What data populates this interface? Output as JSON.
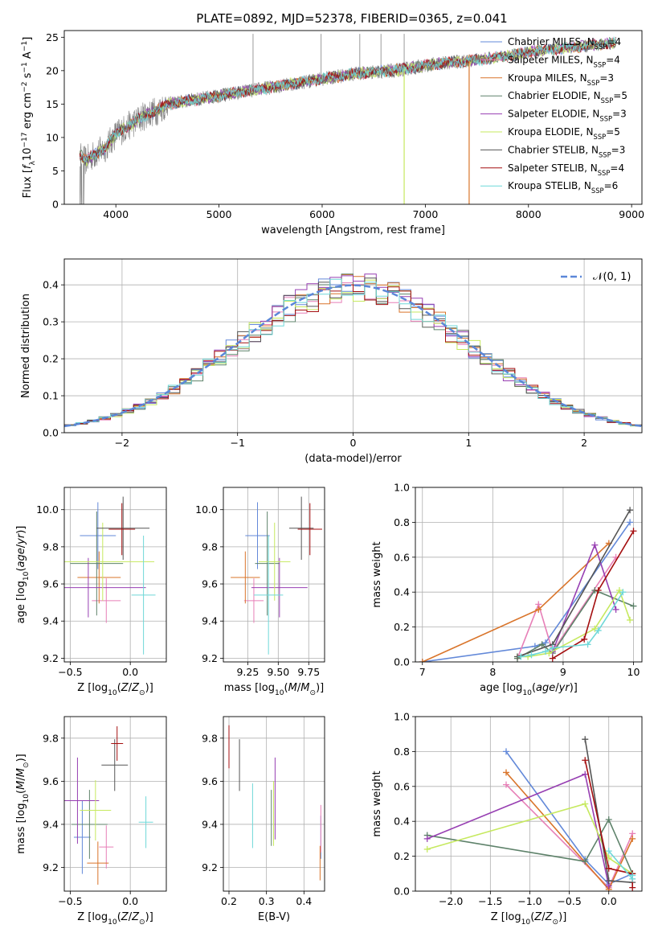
{
  "figure": {
    "title": "PLATE=0892, MJD=52378, FIBERID=0365, z=0.041"
  },
  "series_names": [
    "Chabrier MILES, N_SSP=4",
    "Salpeter MILES, N_SSP=4",
    "Kroupa MILES, N_SSP=3",
    "Chabrier ELODIE, N_SSP=5",
    "Salpeter ELODIE, N_SSP=3",
    "Kroupa ELODIE, N_SSP=5",
    "Chabrier STELIB, N_SSP=3",
    "Salpeter STELIB, N_SSP=4",
    "Kroupa STELIB, N_SSP=6"
  ],
  "series_colors": [
    "#6389d9",
    "#e77fb7",
    "#d9742a",
    "#5e826a",
    "#973fb2",
    "#c6e95f",
    "#555555",
    "#a40f10",
    "#6fd8d8"
  ],
  "chart_data": [
    {
      "id": "spectrum",
      "type": "line",
      "title": "PLATE=0892, MJD=52378, FIBERID=0365, z=0.041",
      "xlabel": "wavelength [Angstrom, rest frame]",
      "ylabel": "Flux [f_λ 10^-17 erg cm^-2 s^-1 A^-1]",
      "xlim": [
        3500,
        9100
      ],
      "ylim": [
        0,
        26
      ],
      "xticks": [
        4000,
        5000,
        6000,
        7000,
        8000,
        9000
      ],
      "yticks": [
        0,
        5,
        10,
        15,
        20,
        25
      ],
      "grid": false,
      "legend": "top-right",
      "observed_color": "#808080",
      "model_wavelength": [
        3650,
        3700,
        3800,
        3900,
        4000,
        4100,
        4200,
        4300,
        4400,
        4500,
        4700,
        4900,
        5100,
        5300,
        5500,
        5700,
        5900,
        6100,
        6300,
        6500,
        6700,
        6900,
        7100,
        7300,
        7500,
        7700,
        7900,
        8100,
        8300,
        8500,
        8700,
        8850
      ],
      "model_flux": [
        7.5,
        6.5,
        7.5,
        8.5,
        10.5,
        11.5,
        12.5,
        13.5,
        14.0,
        15.0,
        15.5,
        16.0,
        16.5,
        17.0,
        17.5,
        18.0,
        18.5,
        19.0,
        19.5,
        19.8,
        20.0,
        20.5,
        21.0,
        21.3,
        21.6,
        22.0,
        22.5,
        23.0,
        23.3,
        23.6,
        24.0,
        24.2
      ],
      "observed_wavelength_range": [
        3650,
        7450
      ],
      "spike_wavelengths": [
        5330,
        5990,
        6365,
        6570,
        6795
      ],
      "dropout_wavelengths": [
        6795,
        7425
      ]
    },
    {
      "id": "residuals",
      "type": "histogram",
      "xlabel": "(data-model)/error",
      "ylabel": "Normed distribution",
      "xlim": [
        -2.5,
        2.5
      ],
      "ylim": [
        0,
        0.47
      ],
      "xticks": [
        -2,
        -1,
        0,
        1,
        2
      ],
      "yticks": [
        0.0,
        0.1,
        0.2,
        0.3,
        0.4
      ],
      "grid": true,
      "legend": "top-right",
      "normal_curve": {
        "name": "N(0,1)",
        "mean": 0,
        "sigma": 1,
        "color": "#5b87d8"
      },
      "bin_width": 0.1
    },
    {
      "id": "age-vs-z",
      "type": "errorbar",
      "xlabel": "Z [log10(Z/Z⊙)]",
      "ylabel": "age  [log10(age/yr)]",
      "xlim": [
        -0.55,
        0.3
      ],
      "ylim": [
        9.18,
        10.12
      ],
      "xticks": [
        -0.5,
        0.0
      ],
      "yticks": [
        9.2,
        9.4,
        9.6,
        9.8,
        10.0
      ],
      "grid": true,
      "points": [
        {
          "x": -0.27,
          "xerr": 0.15,
          "y": 9.86,
          "yerr": 0.18
        },
        {
          "x": -0.2,
          "xerr": 0.12,
          "y": 9.51,
          "yerr": 0.12
        },
        {
          "x": -0.26,
          "xerr": 0.18,
          "y": 9.635,
          "yerr": 0.14
        },
        {
          "x": -0.28,
          "xerr": 0.22,
          "y": 9.71,
          "yerr": 0.28
        },
        {
          "x": -0.35,
          "xerr": 0.48,
          "y": 9.58,
          "yerr": 0.16
        },
        {
          "x": -0.23,
          "xerr": 0.43,
          "y": 9.72,
          "yerr": 0.21
        },
        {
          "x": -0.06,
          "xerr": 0.22,
          "y": 9.9,
          "yerr": 0.17
        },
        {
          "x": -0.07,
          "xerr": 0.11,
          "y": 9.895,
          "yerr": 0.14
        },
        {
          "x": 0.11,
          "xerr": 0.1,
          "y": 9.54,
          "yerr": 0.32
        }
      ]
    },
    {
      "id": "age-vs-mass",
      "type": "errorbar",
      "xlabel": "mass [log10(M/M⊙)]",
      "ylabel": "",
      "xlim": [
        9.05,
        9.88
      ],
      "ylim": [
        9.18,
        10.12
      ],
      "xticks": [
        9.25,
        9.5,
        9.75
      ],
      "yticks": [
        9.2,
        9.4,
        9.6,
        9.8,
        10.0
      ],
      "grid": true,
      "points": [
        {
          "x": 9.33,
          "xerr": 0.1,
          "y": 9.86,
          "yerr": 0.18
        },
        {
          "x": 9.3,
          "xerr": 0.08,
          "y": 9.51,
          "yerr": 0.12
        },
        {
          "x": 9.23,
          "xerr": 0.12,
          "y": 9.635,
          "yerr": 0.14
        },
        {
          "x": 9.41,
          "xerr": 0.1,
          "y": 9.71,
          "yerr": 0.28
        },
        {
          "x": 9.51,
          "xerr": 0.23,
          "y": 9.58,
          "yerr": 0.16
        },
        {
          "x": 9.47,
          "xerr": 0.13,
          "y": 9.72,
          "yerr": 0.21
        },
        {
          "x": 9.69,
          "xerr": 0.1,
          "y": 9.9,
          "yerr": 0.17
        },
        {
          "x": 9.76,
          "xerr": 0.1,
          "y": 9.895,
          "yerr": 0.14
        },
        {
          "x": 9.42,
          "xerr": 0.12,
          "y": 9.54,
          "yerr": 0.32
        }
      ]
    },
    {
      "id": "massweight-vs-age",
      "type": "line",
      "xlabel": "age  [log10(age/yr)]",
      "ylabel": "mass weight",
      "xlim": [
        6.9,
        10.12
      ],
      "ylim": [
        0,
        1
      ],
      "xticks": [
        7,
        8,
        9,
        10
      ],
      "yticks": [
        0.0,
        0.2,
        0.4,
        0.6,
        0.8,
        1.0
      ],
      "grid": true,
      "series": [
        {
          "x": [
            7.0,
            8.6,
            8.75,
            9.95
          ],
          "y": [
            0.0,
            0.09,
            0.11,
            0.8
          ]
        },
        {
          "x": [
            8.35,
            8.65,
            8.85,
            9.75
          ],
          "y": [
            0.02,
            0.33,
            0.06,
            0.6
          ]
        },
        {
          "x": [
            7.0,
            8.65,
            9.65
          ],
          "y": [
            0.0,
            0.3,
            0.68
          ]
        },
        {
          "x": [
            8.35,
            8.7,
            8.85,
            9.45,
            10.0
          ],
          "y": [
            0.02,
            0.1,
            0.05,
            0.41,
            0.32
          ]
        },
        {
          "x": [
            8.85,
            9.45,
            9.75
          ],
          "y": [
            0.06,
            0.67,
            0.3
          ]
        },
        {
          "x": [
            8.35,
            8.5,
            8.8,
            9.45,
            9.8,
            9.95
          ],
          "y": [
            0.03,
            0.03,
            0.05,
            0.19,
            0.41,
            0.24
          ]
        },
        {
          "x": [
            8.35,
            8.85,
            9.95
          ],
          "y": [
            0.03,
            0.1,
            0.87
          ]
        },
        {
          "x": [
            8.85,
            9.3,
            9.5,
            10.0
          ],
          "y": [
            0.02,
            0.13,
            0.41,
            0.75
          ]
        },
        {
          "x": [
            8.4,
            8.55,
            8.75,
            8.85,
            9.35,
            9.5,
            9.85
          ],
          "y": [
            0.03,
            0.04,
            0.06,
            0.08,
            0.1,
            0.18,
            0.4
          ]
        }
      ]
    },
    {
      "id": "mass-vs-z",
      "type": "errorbar",
      "xlabel": "Z [log10(Z/Z⊙)]",
      "ylabel": "mass [log10(M/M⊙)]",
      "xlim": [
        -0.55,
        0.3
      ],
      "ylim": [
        9.09,
        9.9
      ],
      "xticks": [
        -0.5,
        0.0
      ],
      "yticks": [
        9.2,
        9.4,
        9.6,
        9.8
      ],
      "grid": true,
      "points": [
        {
          "x": -0.4,
          "xerr": 0.07,
          "y": 9.34,
          "yerr": 0.17
        },
        {
          "x": -0.2,
          "xerr": 0.06,
          "y": 9.295,
          "yerr": 0.1
        },
        {
          "x": -0.27,
          "xerr": 0.09,
          "y": 9.22,
          "yerr": 0.1
        },
        {
          "x": -0.34,
          "xerr": 0.15,
          "y": 9.4,
          "yerr": 0.16
        },
        {
          "x": -0.44,
          "xerr": 0.18,
          "y": 9.51,
          "yerr": 0.2
        },
        {
          "x": -0.29,
          "xerr": 0.13,
          "y": 9.465,
          "yerr": 0.14
        },
        {
          "x": -0.13,
          "xerr": 0.11,
          "y": 9.675,
          "yerr": 0.12
        },
        {
          "x": -0.11,
          "xerr": 0.05,
          "y": 9.775,
          "yerr": 0.08
        },
        {
          "x": 0.13,
          "xerr": 0.06,
          "y": 9.41,
          "yerr": 0.12
        }
      ]
    },
    {
      "id": "mass-vs-ebv",
      "type": "errorbar",
      "xlabel": "E(B-V)",
      "ylabel": "",
      "xlim": [
        0.185,
        0.455
      ],
      "ylim": [
        9.09,
        9.9
      ],
      "xticks": [
        0.2,
        0.3,
        0.4
      ],
      "yticks": [
        9.2,
        9.4,
        9.6,
        9.8
      ],
      "grid": true,
      "points": [
        {
          "x": 0.445,
          "xerr": 0,
          "y": 9.34,
          "yerr": 0.1
        },
        {
          "x": 0.445,
          "xerr": 0,
          "y": 9.38,
          "yerr": 0.11
        },
        {
          "x": 0.443,
          "xerr": 0,
          "y": 9.22,
          "yerr": 0.08
        },
        {
          "x": 0.313,
          "xerr": 0,
          "y": 9.43,
          "yerr": 0.13
        },
        {
          "x": 0.323,
          "xerr": 0,
          "y": 9.52,
          "yerr": 0.19
        },
        {
          "x": 0.319,
          "xerr": 0,
          "y": 9.45,
          "yerr": 0.15
        },
        {
          "x": 0.228,
          "xerr": 0,
          "y": 9.675,
          "yerr": 0.12
        },
        {
          "x": 0.2,
          "xerr": 0,
          "y": 9.76,
          "yerr": 0.1
        },
        {
          "x": 0.263,
          "xerr": 0,
          "y": 9.44,
          "yerr": 0.15
        }
      ]
    },
    {
      "id": "massweight-vs-z",
      "type": "line",
      "xlabel": "Z [log10(Z/Z⊙)]",
      "ylabel": "mass weight",
      "xlim": [
        -2.45,
        0.42
      ],
      "ylim": [
        0,
        1
      ],
      "xticks": [
        -2.0,
        -1.5,
        -1.0,
        -0.5,
        0.0
      ],
      "yticks": [
        0.0,
        0.2,
        0.4,
        0.6,
        0.8,
        1.0
      ],
      "grid": true,
      "series": [
        {
          "x": [
            -1.3,
            -0.3,
            0.0,
            0.3
          ],
          "y": [
            0.8,
            0.18,
            0.04,
            0.1
          ]
        },
        {
          "x": [
            -1.3,
            0.0,
            0.3
          ],
          "y": [
            0.61,
            0.02,
            0.33
          ]
        },
        {
          "x": [
            -1.3,
            0.0,
            0.3
          ],
          "y": [
            0.68,
            0.01,
            0.3
          ]
        },
        {
          "x": [
            -2.3,
            -0.3,
            0.0,
            0.3
          ],
          "y": [
            0.32,
            0.17,
            0.41,
            0.1
          ]
        },
        {
          "x": [
            -2.3,
            -0.3,
            0.0
          ],
          "y": [
            0.3,
            0.67,
            0.03
          ]
        },
        {
          "x": [
            -2.3,
            -0.3,
            0.0,
            0.3
          ],
          "y": [
            0.24,
            0.5,
            0.19,
            0.1
          ]
        },
        {
          "x": [
            -0.3,
            0.0,
            0.3
          ],
          "y": [
            0.87,
            0.06,
            0.05
          ]
        },
        {
          "x": [
            -0.3,
            0.0,
            0.3,
            0.3
          ],
          "y": [
            0.75,
            0.13,
            0.1,
            0.02
          ]
        },
        {
          "x": [
            0.0,
            0.3,
            0.3
          ],
          "y": [
            0.23,
            0.07,
            0.09
          ]
        }
      ]
    }
  ]
}
